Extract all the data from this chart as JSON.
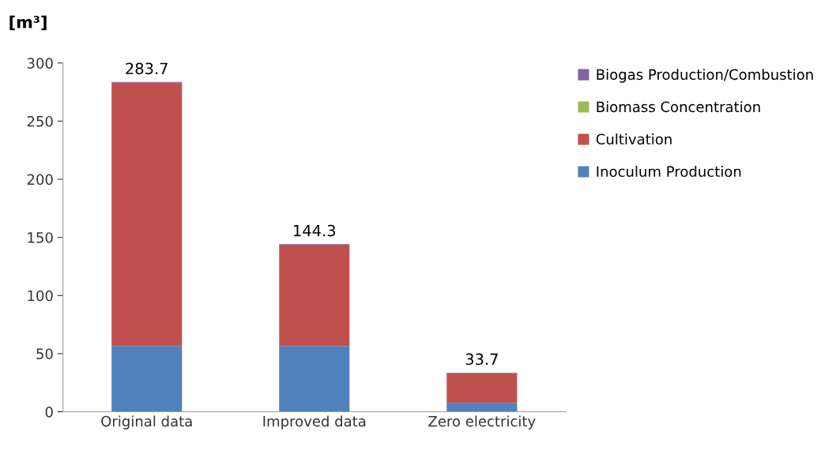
{
  "chart_data": {
    "type": "bar",
    "stacked": true,
    "ylabel": "[m³]",
    "categories": [
      "Original data",
      "Improved data",
      "Zero electricity"
    ],
    "series": [
      {
        "name": "Inoculum Production",
        "color": "#4f81bd",
        "values": [
          56.5,
          56.5,
          7.7
        ]
      },
      {
        "name": "Cultivation",
        "color": "#c0504d",
        "values": [
          226.5,
          87.2,
          25.5
        ]
      },
      {
        "name": "Biomass Concentration",
        "color": "#9bbb59",
        "values": [
          0.1,
          0.1,
          0.1
        ]
      },
      {
        "name": "Biogas Production/Combustion",
        "color": "#8064a2",
        "values": [
          0.6,
          0.5,
          0.4
        ]
      }
    ],
    "totals": [
      "283.7",
      "144.3",
      "33.7"
    ],
    "ylim": [
      0,
      300
    ],
    "yticks": [
      0,
      50,
      100,
      150,
      200,
      250,
      300
    ],
    "grid": false,
    "legend": "right"
  }
}
